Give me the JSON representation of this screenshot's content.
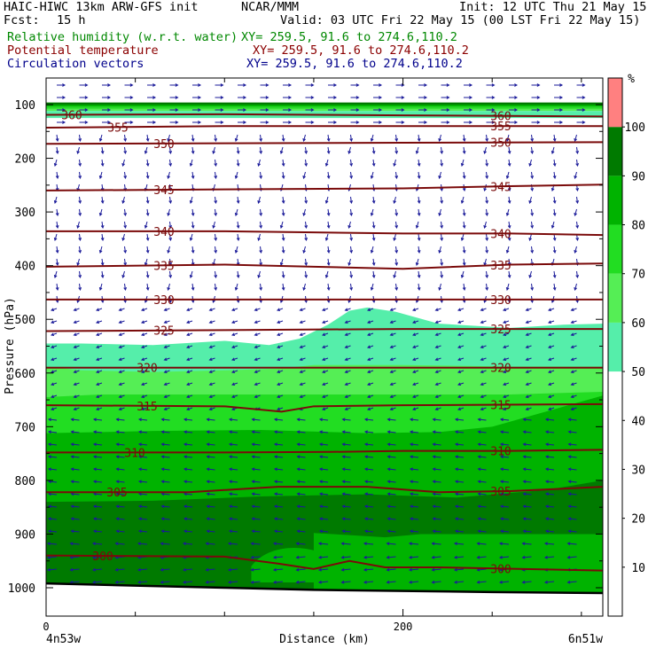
{
  "header": {
    "model_line": "HAIC-HIWC 13km ARW-GFS init",
    "center": "NCAR/MMM",
    "init": "Init: 12 UTC Thu 21 May 15",
    "fcst_label": "Fcst:",
    "fcst_value": "15 h",
    "valid": "Valid: 03 UTC Fri 22 May 15 (00 LST Fri 22 May 15)",
    "fields": [
      {
        "name": "Relative humidity (w.r.t. water)",
        "xy": "XY= 259.5, 91.6 to 274.6,110.2",
        "color": "#008800"
      },
      {
        "name": "Potential temperature",
        "xy": "XY= 259.5, 91.6 to 274.6,110.2",
        "color": "#8b0000"
      },
      {
        "name": "Circulation vectors",
        "xy": "XY= 259.5, 91.6 to 274.6,110.2",
        "color": "#00008b"
      }
    ]
  },
  "chart_data": {
    "type": "heatmap",
    "xlabel": "Distance (km)",
    "ylabel": "Pressure (hPa)",
    "x_ticks": [
      "0",
      "200"
    ],
    "x_tick_values": [
      0,
      200
    ],
    "xlim": [
      0,
      312
    ],
    "y_ticks": [
      "100",
      "200",
      "300",
      "400",
      "500",
      "600",
      "700",
      "800",
      "900",
      "1000"
    ],
    "y_tick_values": [
      100,
      200,
      300,
      400,
      500,
      600,
      700,
      800,
      900,
      1000
    ],
    "ylim": [
      1050,
      40
    ],
    "left_endpoint": "4n53w",
    "right_endpoint": "6n51w",
    "colorbar": {
      "unit": "%",
      "labels": [
        "10",
        "20",
        "30",
        "40",
        "50",
        "60",
        "70",
        "80",
        "90",
        "100"
      ],
      "levels": [
        {
          "from": 0,
          "to": 50,
          "color": "#ffffff"
        },
        {
          "from": 50,
          "to": 60,
          "color": "#55eeaa"
        },
        {
          "from": 60,
          "to": 70,
          "color": "#55ee55"
        },
        {
          "from": 70,
          "to": 80,
          "color": "#22dd22"
        },
        {
          "from": 80,
          "to": 90,
          "color": "#00b300"
        },
        {
          "from": 90,
          "to": 100,
          "color": "#007a00"
        },
        {
          "from": 100,
          "to": 110,
          "color": "#ff8080"
        }
      ],
      "max": 110
    },
    "theta_contours": [
      {
        "label": "300",
        "x": [
          0,
          100,
          130,
          150,
          170,
          190,
          220,
          312
        ],
        "p": [
          940,
          942,
          955,
          965,
          950,
          962,
          962,
          968
        ]
      },
      {
        "label": "305",
        "x": [
          0,
          80,
          130,
          180,
          220,
          260,
          312
        ],
        "p": [
          822,
          822,
          812,
          812,
          822,
          820,
          812
        ]
      },
      {
        "label": "310",
        "x": [
          0,
          100,
          160,
          200,
          260,
          312
        ],
        "p": [
          748,
          748,
          747,
          745,
          745,
          743
        ]
      },
      {
        "label": "315",
        "x": [
          0,
          100,
          132,
          150,
          200,
          312
        ],
        "p": [
          660,
          662,
          672,
          662,
          660,
          658
        ]
      },
      {
        "label": "320",
        "x": [
          0,
          100,
          200,
          312
        ],
        "p": [
          590,
          590,
          590,
          590
        ]
      },
      {
        "label": "325",
        "x": [
          0,
          100,
          200,
          312
        ],
        "p": [
          522,
          520,
          518,
          518
        ]
      },
      {
        "label": "330",
        "x": [
          0,
          100,
          200,
          312
        ],
        "p": [
          463,
          463,
          463,
          463
        ]
      },
      {
        "label": "335",
        "x": [
          0,
          100,
          150,
          200,
          260,
          312
        ],
        "p": [
          402,
          398,
          402,
          406,
          398,
          396
        ]
      },
      {
        "label": "340",
        "x": [
          0,
          100,
          150,
          200,
          260,
          312
        ],
        "p": [
          336,
          336,
          338,
          340,
          340,
          343
        ]
      },
      {
        "label": "345",
        "x": [
          0,
          100,
          200,
          260,
          312
        ],
        "p": [
          260,
          258,
          256,
          252,
          249
        ]
      },
      {
        "label": "350",
        "x": [
          0,
          100,
          200,
          312
        ],
        "p": [
          173,
          172,
          171,
          170
        ]
      },
      {
        "label": "355",
        "x": [
          0,
          100,
          200,
          312
        ],
        "p": [
          143,
          140,
          140,
          140
        ]
      },
      {
        "label": "360",
        "x": [
          0,
          100,
          200,
          312
        ],
        "p": [
          119,
          118,
          120,
          122
        ]
      }
    ],
    "rh_polygons": [
      {
        "rh": 100,
        "x": [
          0,
          312,
          312,
          0
        ],
        "p_top": [
          40,
          40
        ],
        "p_bottom": [
          96,
          96
        ]
      },
      {
        "rh": 90,
        "x": [
          0,
          312
        ],
        "p_top": [
          96,
          96
        ],
        "p_bottom": [
          100,
          100
        ]
      },
      {
        "rh": 80,
        "x": [
          0,
          312
        ],
        "p_top": [
          100,
          100
        ],
        "p_bottom": [
          104,
          104
        ]
      },
      {
        "rh": 70,
        "x": [
          0,
          312
        ],
        "p_top": [
          104,
          104
        ],
        "p_bottom": [
          108,
          108
        ]
      },
      {
        "rh": 60,
        "x": [
          0,
          312
        ],
        "p_top": [
          108,
          108
        ],
        "p_bottom": [
          112,
          112
        ]
      },
      {
        "rh": 50,
        "x": [
          0,
          312
        ],
        "p_top": [
          112,
          112
        ],
        "p_bottom": [
          125,
          125
        ]
      },
      {
        "rh": 50,
        "xs": [
          0,
          20,
          60,
          100,
          125,
          142,
          158,
          170,
          180,
          196,
          220,
          240,
          260,
          290,
          312
        ],
        "p_top": [
          545,
          545,
          548,
          540,
          548,
          536,
          510,
          484,
          478,
          486,
          508,
          512,
          516,
          510,
          508
        ]
      },
      {
        "rh": 60,
        "xs": [
          0,
          20,
          60,
          100,
          130,
          150,
          200,
          260,
          312
        ],
        "p_top": [
          588,
          595,
          598,
          595,
          592,
          585,
          585,
          588,
          588
        ]
      },
      {
        "rh": 70,
        "xs": [
          0,
          30,
          80,
          130,
          150,
          200,
          260,
          312
        ],
        "p_top": [
          645,
          640,
          640,
          640,
          640,
          640,
          640,
          635
        ]
      },
      {
        "rh": 80,
        "xs": [
          0,
          60,
          120,
          180,
          220,
          250,
          280,
          312
        ],
        "p_top": [
          712,
          708,
          706,
          712,
          710,
          700,
          672,
          642
        ]
      },
      {
        "rh": 90,
        "xs": [
          0,
          60,
          120,
          180,
          230,
          280,
          312
        ],
        "p_top": [
          840,
          838,
          830,
          826,
          832,
          818,
          800
        ]
      },
      {
        "rh": 80,
        "xs": [
          150,
          170,
          190,
          210,
          240,
          270,
          312
        ],
        "p_top": [
          898,
          902,
          906,
          900,
          900,
          900,
          900
        ],
        "p_bottom_to": "surface"
      }
    ],
    "surface_p": {
      "x": [
        0,
        50,
        100,
        150,
        200,
        250,
        312
      ],
      "p": [
        992,
        996,
        1000,
        1004,
        1006,
        1008,
        1010
      ]
    }
  }
}
